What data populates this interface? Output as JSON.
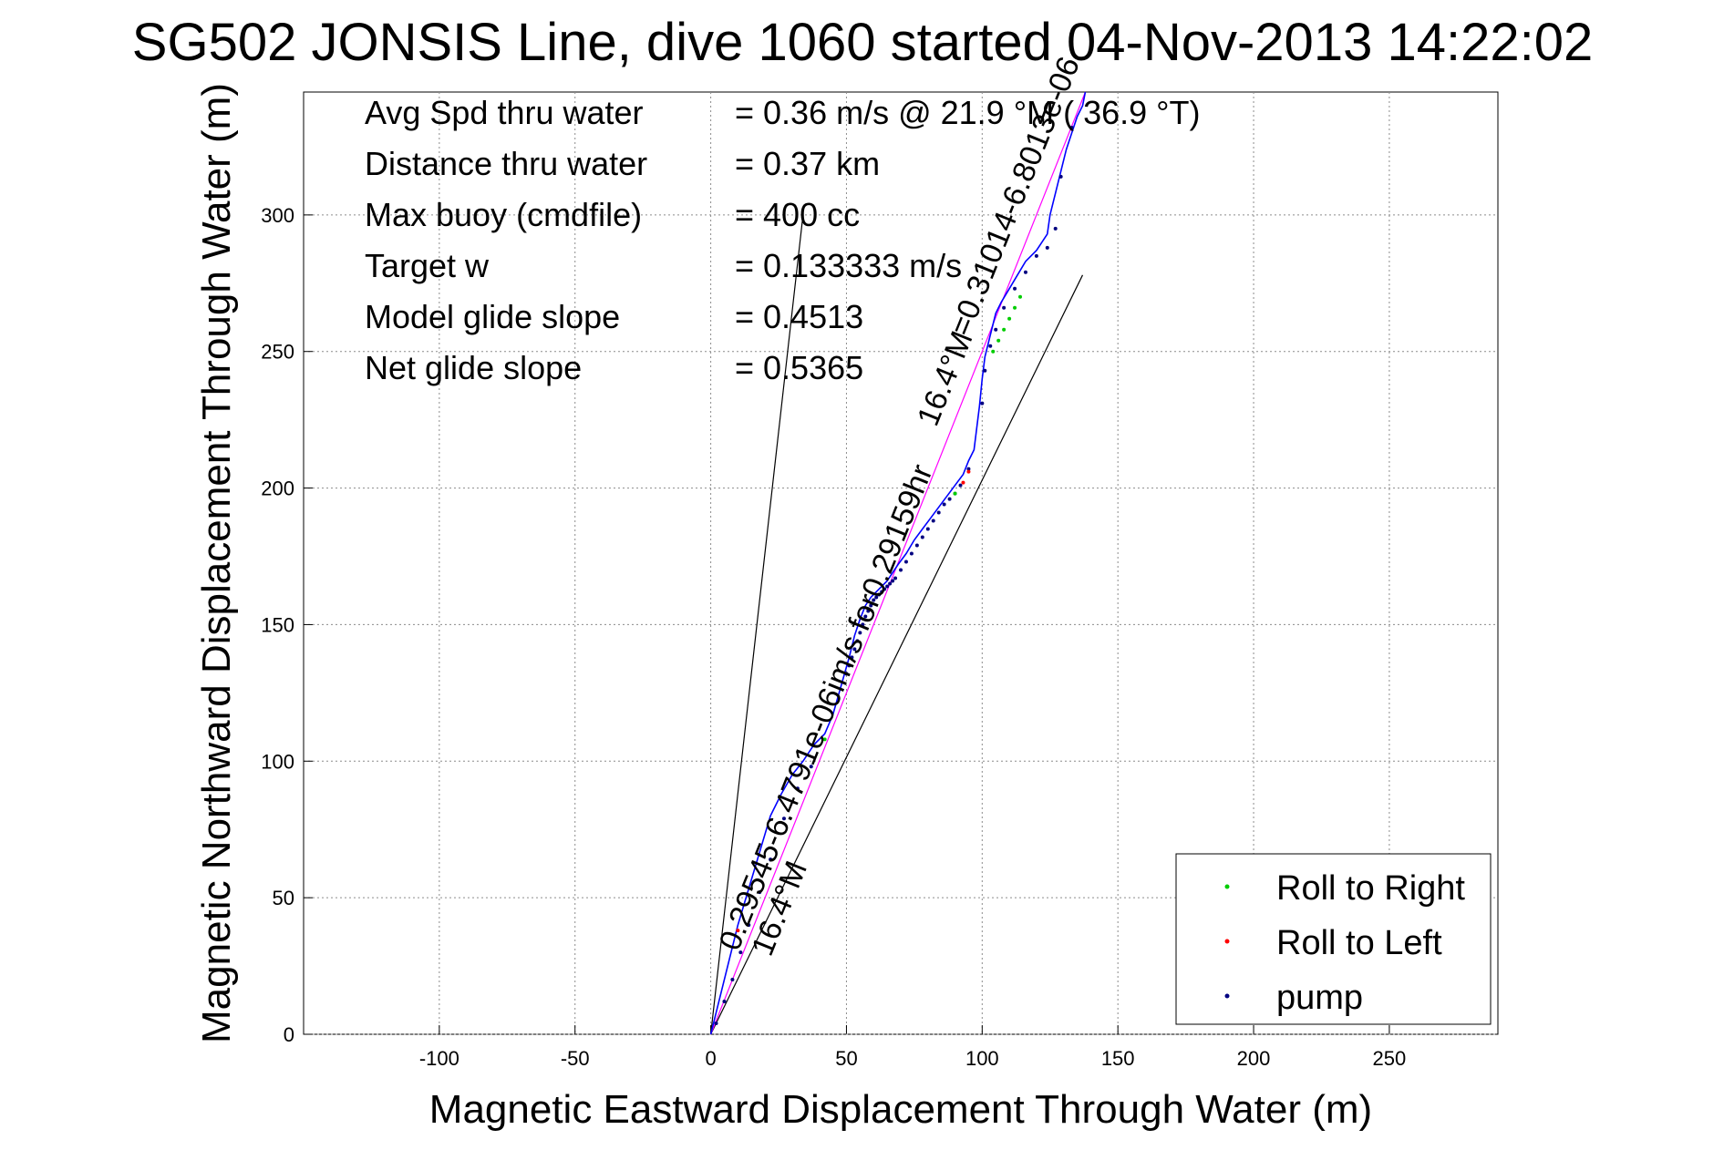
{
  "chart_data": {
    "type": "line",
    "title": "SG502 JONSIS Line, dive 1060 started 04-Nov-2013 14:22:02",
    "xlabel": "Magnetic Eastward Displacement Through Water (m)",
    "ylabel": "Magnetic Northward Displacement Through Water (m)",
    "xlim": [
      -150,
      290
    ],
    "ylim": [
      0,
      345
    ],
    "x_ticks": [
      -100,
      -50,
      0,
      50,
      100,
      150,
      200,
      250
    ],
    "y_ticks": [
      0,
      50,
      100,
      150,
      200,
      250,
      300
    ],
    "grid": true,
    "legend_position": "bottom-right",
    "info_lines": [
      {
        "label": "Avg Spd thru water",
        "value": "=  0.36 m/s @  21.9 °M ( 36.9 °T)"
      },
      {
        "label": "Distance thru water",
        "value": "=  0.37 km"
      },
      {
        "label": "Max buoy (cmdfile)",
        "value": "= 400 cc"
      },
      {
        "label": "Target w",
        "value": "= 0.133333 m/s"
      },
      {
        "label": "Model glide slope",
        "value": "= 0.4513"
      },
      {
        "label": "Net glide slope",
        "value": "= 0.5365"
      }
    ],
    "track": {
      "color": "#0000ff",
      "x": [
        0,
        2,
        4,
        6,
        8,
        10,
        13,
        16,
        19,
        22,
        26,
        30,
        34,
        38,
        42,
        45,
        47,
        49,
        51,
        53,
        55,
        57,
        59,
        61,
        63,
        65,
        67,
        69,
        72,
        75,
        78,
        81,
        84,
        87,
        90,
        93,
        95,
        97,
        98,
        99,
        100,
        101,
        102,
        103,
        104,
        105,
        107,
        110,
        113,
        116,
        120,
        124,
        125,
        127,
        129,
        131,
        133,
        135,
        137,
        138
      ],
      "y": [
        0,
        8,
        16,
        24,
        32,
        40,
        50,
        60,
        70,
        80,
        88,
        95,
        100,
        106,
        110,
        117,
        124,
        131,
        138,
        146,
        152,
        157,
        160,
        162,
        164,
        166,
        169,
        172,
        176,
        181,
        185,
        189,
        193,
        197,
        201,
        205,
        210,
        214,
        222,
        230,
        240,
        248,
        252,
        256,
        260,
        264,
        268,
        273,
        278,
        283,
        287,
        293,
        300,
        308,
        316,
        324,
        330,
        336,
        340,
        345
      ]
    },
    "pump_points": {
      "color": "#000080",
      "x": [
        2,
        5,
        8,
        11,
        14,
        18,
        22,
        27,
        32,
        37,
        50,
        51,
        52,
        53,
        54,
        55,
        56,
        57,
        58,
        59,
        60,
        61,
        62,
        63,
        64,
        65,
        66,
        67,
        68,
        70,
        72,
        74,
        76,
        78,
        80,
        82,
        84,
        86,
        88,
        90,
        92,
        95,
        100,
        101,
        103,
        105,
        108,
        112,
        116,
        120,
        124,
        127,
        129,
        133
      ],
      "y": [
        4,
        12,
        20,
        30,
        40,
        52,
        64,
        79,
        90,
        98,
        132,
        135,
        138,
        141,
        144,
        147,
        150,
        153,
        155,
        157,
        159,
        160,
        161,
        162,
        163,
        164,
        165,
        166,
        167,
        170,
        173,
        176,
        179,
        182,
        185,
        188,
        191,
        194,
        196,
        198,
        201,
        207,
        231,
        243,
        252,
        258,
        266,
        273,
        279,
        285,
        288,
        295,
        314,
        332
      ]
    },
    "roll_right_points": {
      "color": "#00cc00",
      "x": [
        42,
        90,
        104,
        106,
        108,
        110,
        112,
        114
      ],
      "y": [
        108,
        198,
        250,
        254,
        258,
        262,
        266,
        270
      ]
    },
    "roll_left_points": {
      "color": "#ff0000",
      "x": [
        10,
        93,
        95
      ],
      "y": [
        38,
        202,
        206
      ]
    },
    "dive_heading_line": {
      "x": [
        0,
        138
      ],
      "y": [
        0,
        345
      ],
      "color": "#ff00ff"
    },
    "reference_lines": [
      {
        "x": [
          0,
          34
        ],
        "y": [
          0,
          300
        ],
        "color": "#000000"
      },
      {
        "x": [
          0,
          137
        ],
        "y": [
          0,
          278
        ],
        "color": "#000000"
      }
    ],
    "annotations": [
      {
        "text": "0.29545-6.4791e-06im/s for0.29159hr",
        "x": 10,
        "y": 30,
        "rotation_deg": -68
      },
      {
        "text": "16.4°M",
        "x": 22,
        "y": 28,
        "rotation_deg": -68
      },
      {
        "text": "=0.31014-6.8013e-06",
        "x": 95,
        "y": 255,
        "rotation_deg": -68
      },
      {
        "text": "16.4°M",
        "x": 83,
        "y": 222,
        "rotation_deg": -68
      }
    ],
    "legend": [
      {
        "label": "Roll to Right",
        "color": "#00cc00"
      },
      {
        "label": "Roll to Left",
        "color": "#ff0000"
      },
      {
        "label": "pump",
        "color": "#000080"
      }
    ]
  }
}
